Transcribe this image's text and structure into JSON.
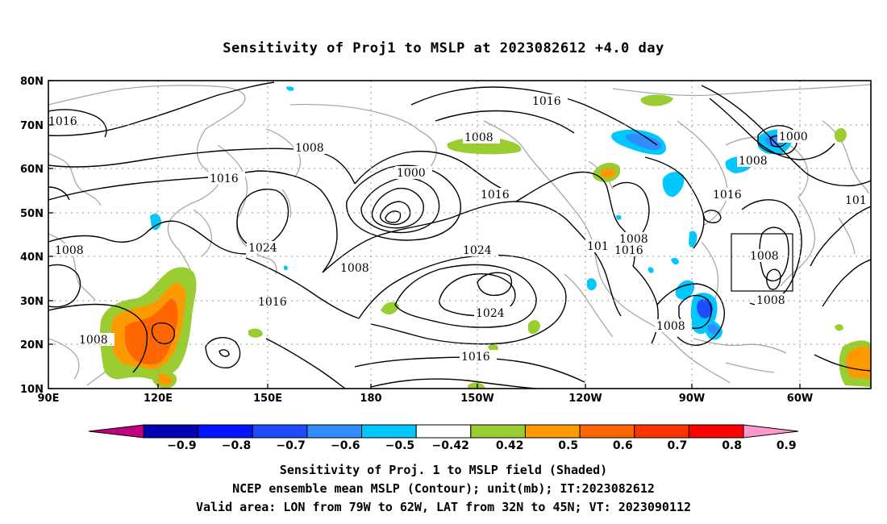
{
  "title": "Sensitivity of Proj1 to MSLP at 2023082612 +4.0 day",
  "lat_labels": [
    "80N",
    "70N",
    "60N",
    "50N",
    "40N",
    "30N",
    "20N",
    "10N"
  ],
  "lon_labels": [
    "90E",
    "120E",
    "150E",
    "180",
    "150W",
    "120W",
    "90W",
    "60W"
  ],
  "colorbar": {
    "colors": [
      "#c0007f",
      "#0000b3",
      "#0014ff",
      "#1e4bff",
      "#2f8dff",
      "#00c8ff",
      "#ffffff",
      "#9acd32",
      "#ff9900",
      "#ff6600",
      "#ff3300",
      "#ff0000",
      "#ff99cc"
    ],
    "tick_labels": [
      "−0.9",
      "−0.8",
      "−0.7",
      "−0.6",
      "−0.5",
      "−0.42",
      "0.42",
      "0.5",
      "0.6",
      "0.7",
      "0.8",
      "0.9"
    ]
  },
  "contour_labels": [
    "1016",
    "1008",
    "1016",
    "1024",
    "1016",
    "1008",
    "1008",
    "1000",
    "1008",
    "1016",
    "1024",
    "1024",
    "1016",
    "1016",
    "101",
    "1008",
    "1016",
    "1000",
    "1008",
    "1016",
    "1008",
    "1008",
    "1008",
    "101"
  ],
  "footer": {
    "line1": "Sensitivity of Proj. 1 to MSLP field (Shaded)",
    "line2": "NCEP ensemble mean MSLP (Contour); unit(mb); IT:2023082612",
    "line3": "Valid area: LON from 79W to 62W, LAT from 32N to 45N; VT: 2023090112"
  }
}
